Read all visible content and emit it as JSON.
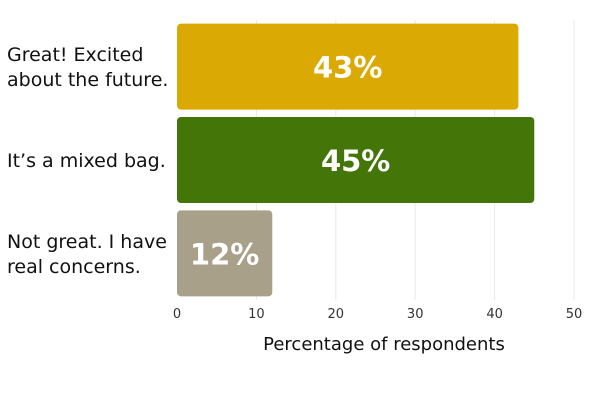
{
  "chart_data": {
    "type": "bar",
    "orientation": "horizontal",
    "categories": [
      [
        "Great! Excited",
        "about the future."
      ],
      [
        "It’s a mixed bag."
      ],
      [
        "Not great. I have",
        "real concerns."
      ]
    ],
    "values": [
      43,
      45,
      12
    ],
    "value_labels": [
      "43%",
      "45%",
      "12%"
    ],
    "colors": [
      "#DAA903",
      "#437509",
      "#A9A08A"
    ],
    "xlabel": "Percentage of respondents",
    "xlim": [
      0,
      50
    ],
    "xticks": [
      0,
      10,
      20,
      30,
      40,
      50
    ],
    "grid": true
  }
}
